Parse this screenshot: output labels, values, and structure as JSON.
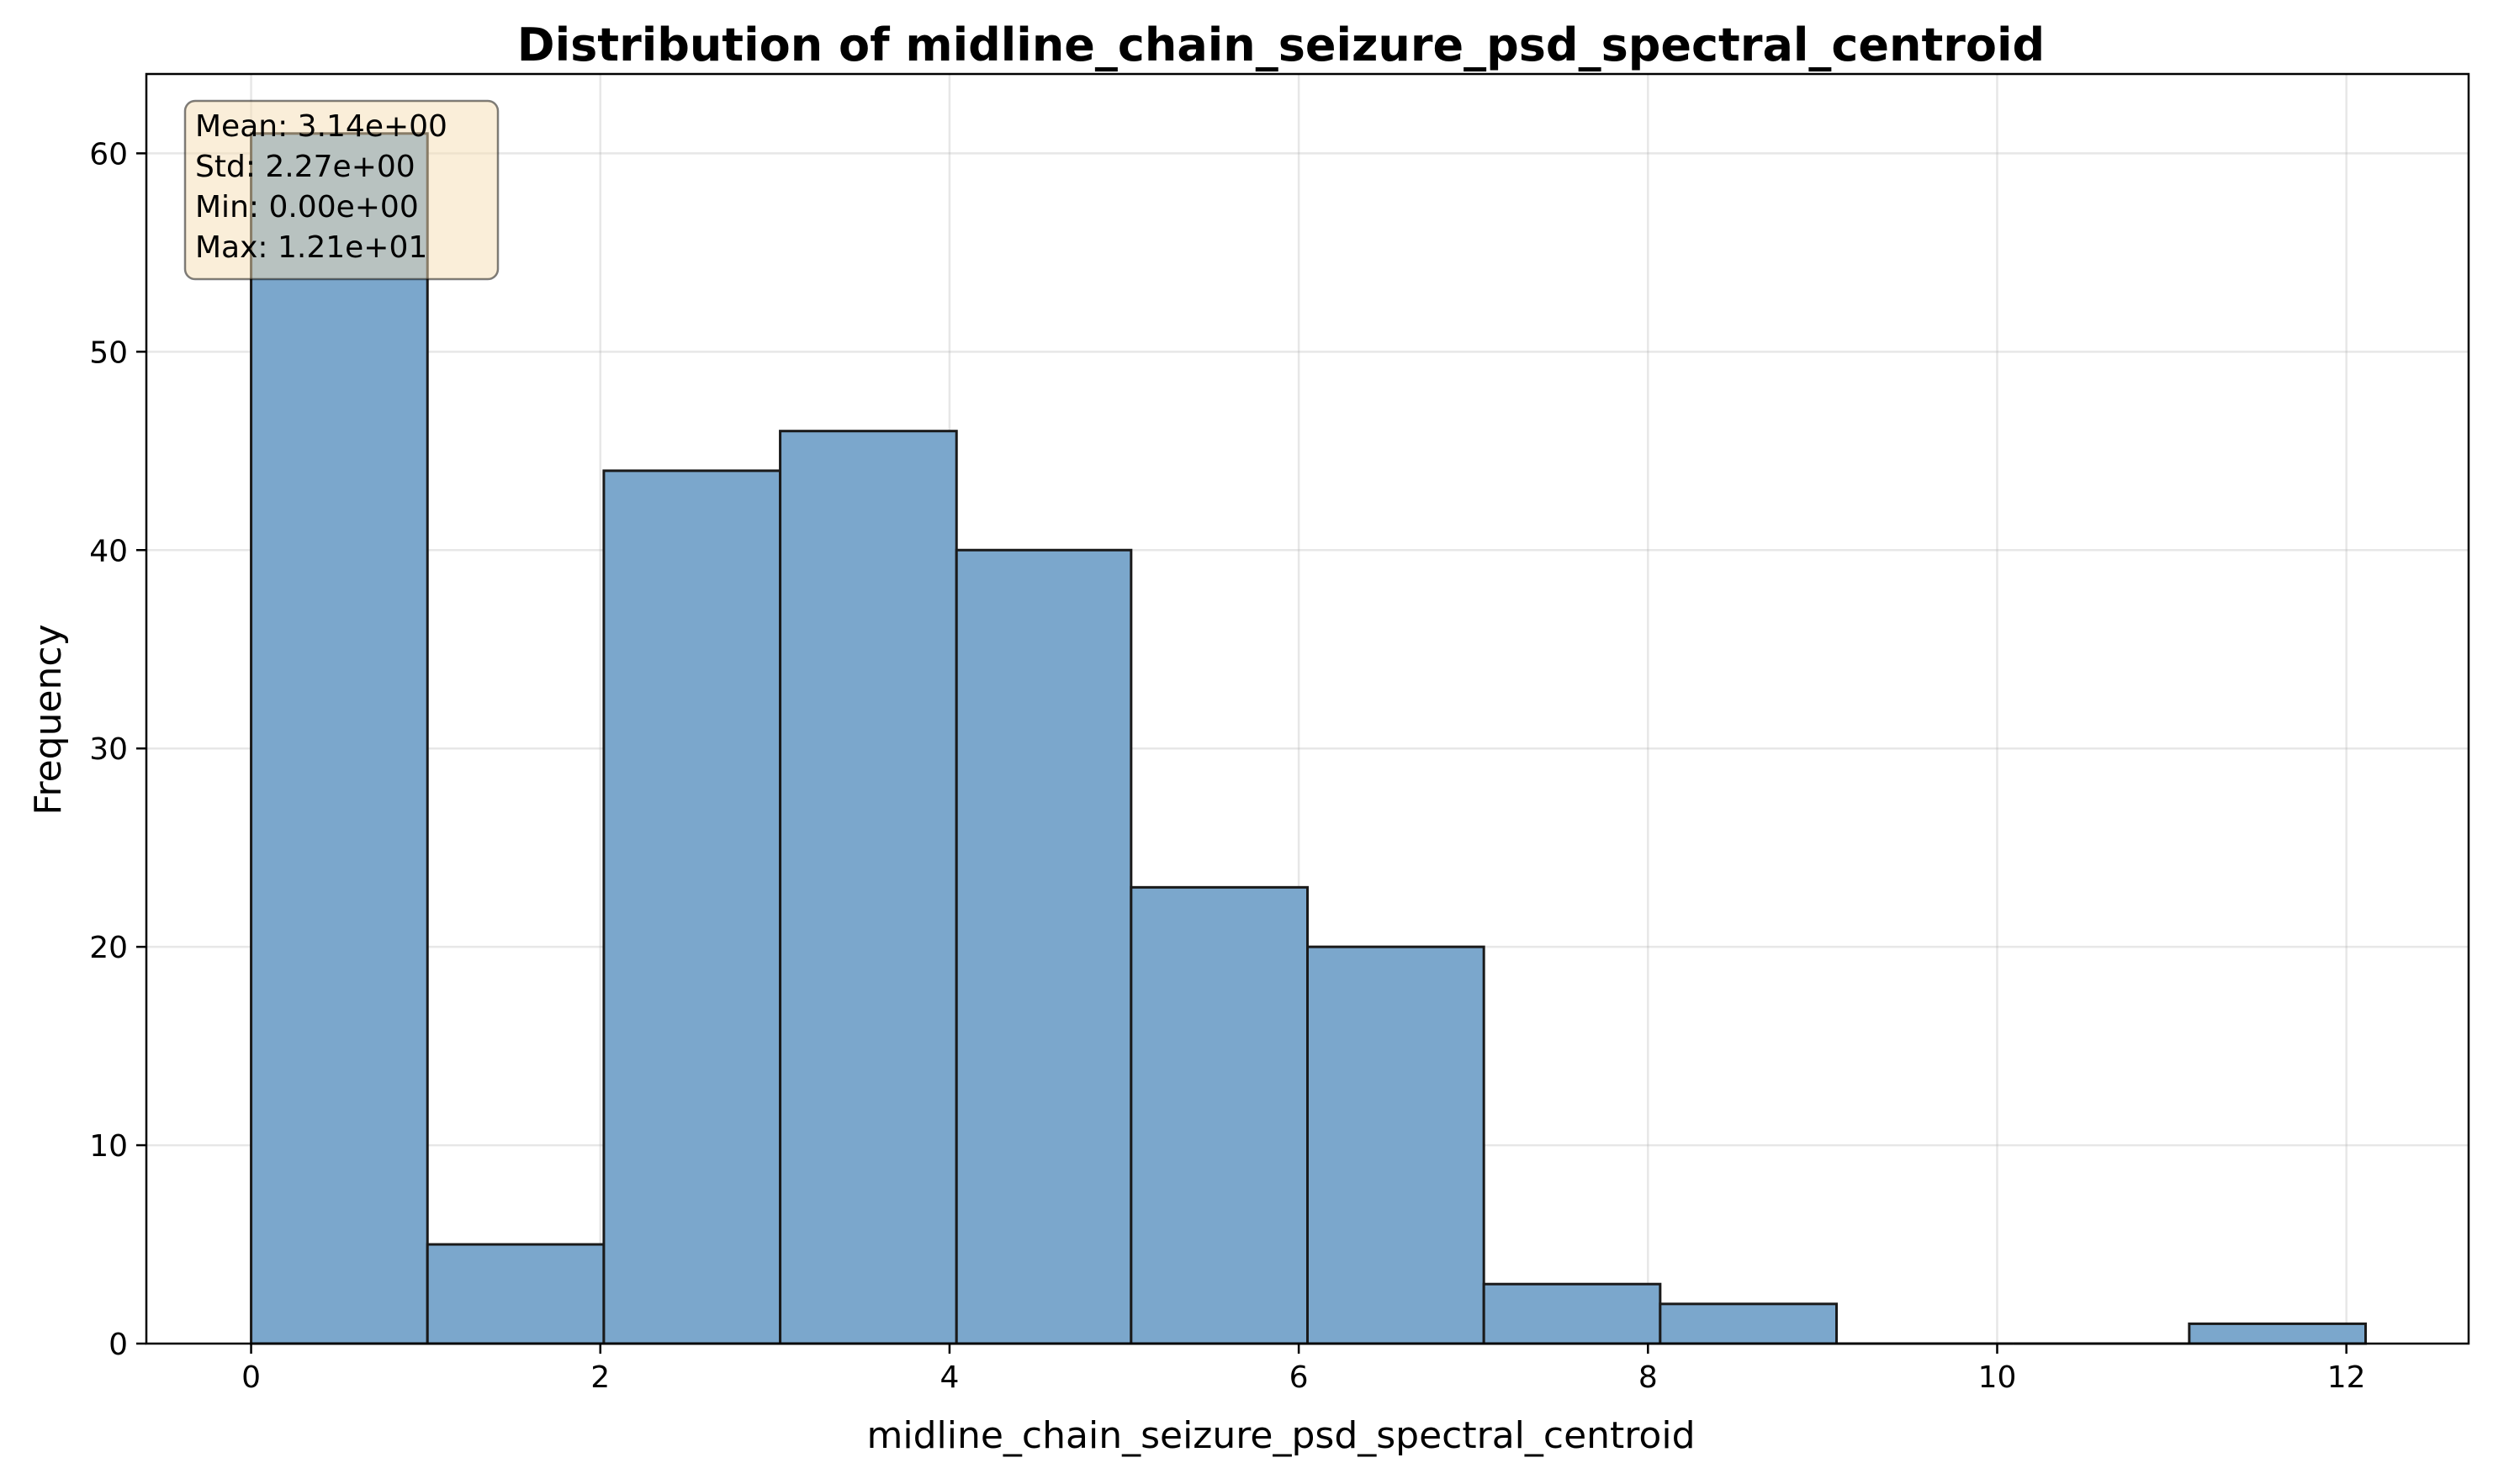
{
  "chart_data": {
    "type": "bar",
    "title": "Distribution of midline_chain_seizure_psd_spectral_centroid",
    "xlabel": "midline_chain_seizure_psd_spectral_centroid",
    "ylabel": "Frequency",
    "xlim": [
      -0.6,
      12.7
    ],
    "ylim": [
      0,
      64
    ],
    "xticks": [
      "0",
      "2",
      "4",
      "6",
      "8",
      "10",
      "12"
    ],
    "yticks": [
      "0",
      "10",
      "20",
      "30",
      "40",
      "50",
      "60"
    ],
    "grid": true,
    "bar_color": "#7ba7cc",
    "edge_color": "#1a1a1a",
    "bins": [
      {
        "x0": 0.0,
        "x1": 1.01,
        "count": 61
      },
      {
        "x0": 1.01,
        "x1": 2.02,
        "count": 5
      },
      {
        "x0": 2.02,
        "x1": 3.03,
        "count": 44
      },
      {
        "x0": 3.03,
        "x1": 4.04,
        "count": 46
      },
      {
        "x0": 4.04,
        "x1": 5.04,
        "count": 40
      },
      {
        "x0": 5.04,
        "x1": 6.05,
        "count": 23
      },
      {
        "x0": 6.05,
        "x1": 7.06,
        "count": 20
      },
      {
        "x0": 7.06,
        "x1": 8.07,
        "count": 3
      },
      {
        "x0": 8.07,
        "x1": 9.08,
        "count": 2
      },
      {
        "x0": 9.08,
        "x1": 10.09,
        "count": 0
      },
      {
        "x0": 10.09,
        "x1": 11.1,
        "count": 0
      },
      {
        "x0": 11.1,
        "x1": 12.11,
        "count": 1
      }
    ],
    "stats_box": {
      "lines": [
        "Mean: 3.14e+00",
        "Std: 2.27e+00",
        "Min: 0.00e+00",
        "Max: 1.21e+01"
      ],
      "placement": "top-left",
      "background": "#f5deb3"
    }
  }
}
